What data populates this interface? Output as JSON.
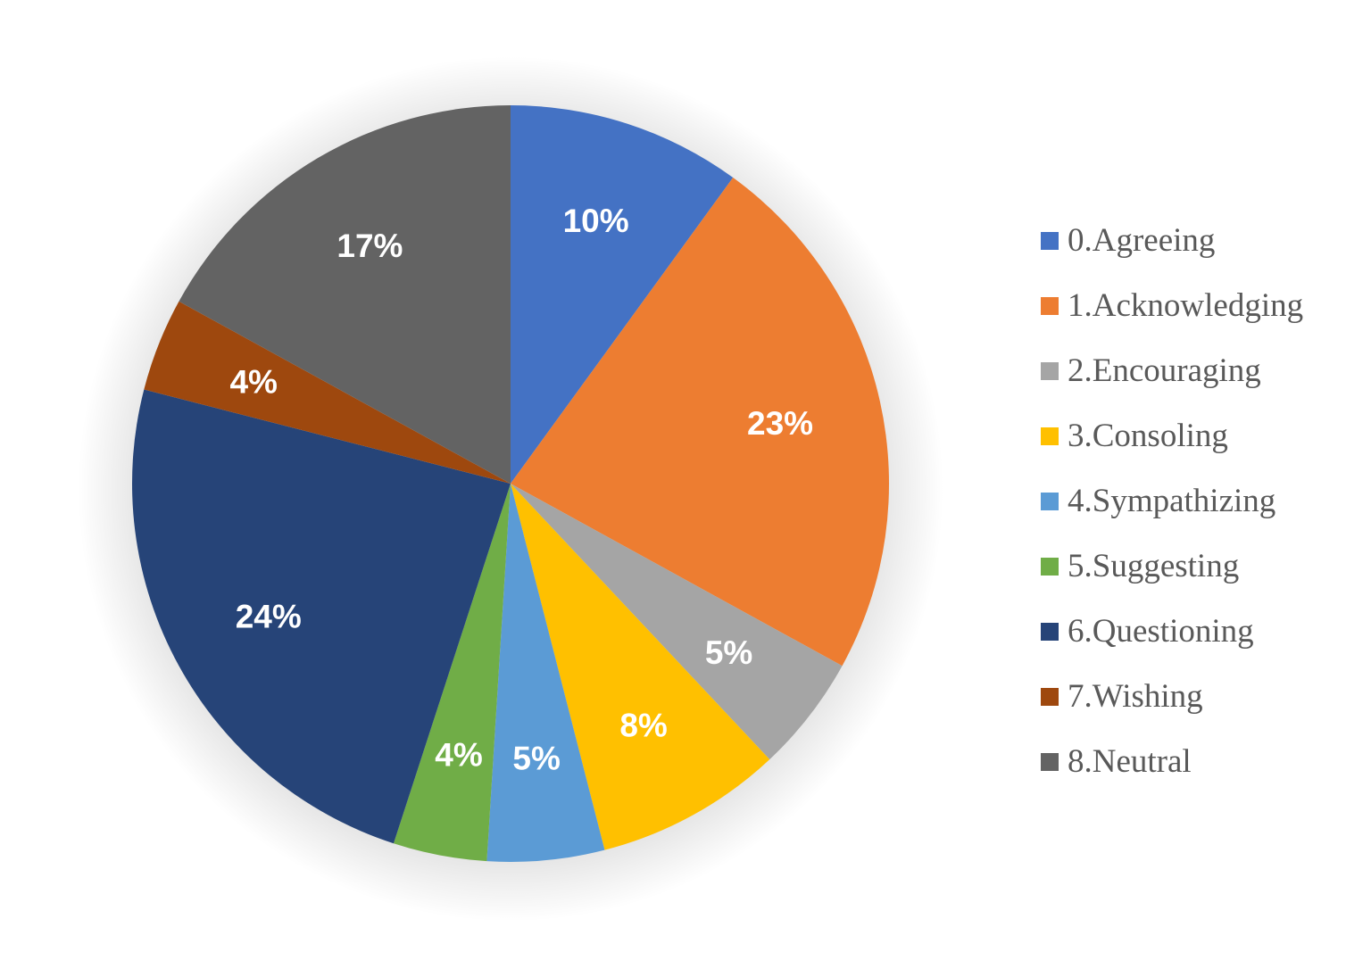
{
  "chart_data": {
    "type": "pie",
    "categories": [
      "0.Agreeing",
      "1.Acknowledging",
      "2.Encouraging",
      "3.Consoling",
      "4.Sympathizing",
      "5.Suggesting",
      "6.Questioning",
      "7.Wishing",
      "8.Neutral"
    ],
    "values": [
      10,
      23,
      5,
      8,
      5,
      4,
      24,
      4,
      17
    ],
    "data_labels": [
      "10%",
      "23%",
      "5%",
      "8%",
      "5%",
      "4%",
      "24%",
      "4%",
      "17%"
    ],
    "colors": [
      "#4472C4",
      "#ED7D31",
      "#A5A5A5",
      "#FFC000",
      "#5B9BD5",
      "#70AD47",
      "#264478",
      "#9E480E",
      "#636363"
    ],
    "legend_position": "right",
    "start_angle": "12 o'clock",
    "direction": "clockwise"
  }
}
